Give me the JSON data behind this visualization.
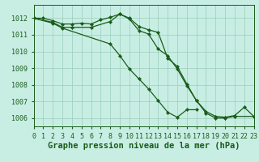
{
  "title": "Graphe pression niveau de la mer (hPa)",
  "background_color": "#c8eee4",
  "grid_color": "#99ccbb",
  "line_color": "#1a5c1a",
  "series": [
    {
      "x": [
        0,
        1,
        2,
        3,
        4,
        5,
        6,
        7,
        8,
        9,
        10,
        11,
        12,
        13,
        14,
        15,
        16,
        17,
        18,
        19,
        20,
        21,
        22,
        23
      ],
      "y": [
        1012.0,
        1012.0,
        1011.85,
        1011.65,
        1011.65,
        1011.7,
        1011.65,
        1011.9,
        1012.05,
        1012.25,
        1012.0,
        1011.5,
        1011.3,
        1011.15,
        1009.6,
        1009.1,
        1008.05,
        1007.05,
        1006.4,
        1006.1,
        1006.05,
        1006.15,
        1006.65,
        1006.1
      ]
    },
    {
      "x": [
        0,
        2,
        3,
        4,
        6,
        8,
        9,
        10,
        11,
        12,
        13,
        14,
        15,
        16,
        17,
        18,
        19,
        20,
        21,
        23
      ],
      "y": [
        1012.0,
        1011.75,
        1011.45,
        1011.45,
        1011.45,
        1011.8,
        1012.25,
        1011.95,
        1011.25,
        1011.05,
        1010.15,
        1009.75,
        1008.95,
        1007.95,
        1007.05,
        1006.3,
        1006.0,
        1006.0,
        1006.1,
        1006.1
      ]
    },
    {
      "x": [
        0,
        2,
        3,
        8,
        9,
        10,
        11,
        12,
        13,
        14,
        15,
        16,
        17
      ],
      "y": [
        1012.0,
        1011.7,
        1011.4,
        1010.45,
        1009.75,
        1008.95,
        1008.35,
        1007.75,
        1007.05,
        1006.35,
        1006.05,
        1006.5,
        1006.5
      ]
    }
  ],
  "xlim": [
    0,
    23
  ],
  "ylim": [
    1005.5,
    1012.8
  ],
  "yticks": [
    1006,
    1007,
    1008,
    1009,
    1010,
    1011,
    1012
  ],
  "xticks": [
    0,
    1,
    2,
    3,
    4,
    5,
    6,
    7,
    8,
    9,
    10,
    11,
    12,
    13,
    14,
    15,
    16,
    17,
    18,
    19,
    20,
    21,
    22,
    23
  ],
  "title_fontsize": 7.5,
  "tick_fontsize": 6.0,
  "figwidth": 3.2,
  "figheight": 2.0,
  "dpi": 100
}
